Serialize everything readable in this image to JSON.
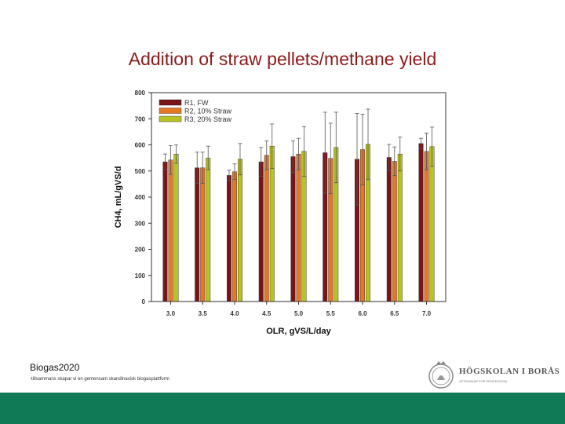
{
  "slide": {
    "title": "Addition of straw pellets/methane yield",
    "footer_brand": "Biogas2020",
    "footer_tagline": "-tillsammans skapar vi en gemensam skandinavisk biogasplattform",
    "logo_name": "HÖGSKOLAN I BORÅS",
    "logo_sub": "VETENSKAP FÖR PROFESSION",
    "bar_color": "#0f7a55"
  },
  "chart_data": {
    "type": "bar",
    "title": "",
    "xlabel": "OLR, gVS/L/day",
    "ylabel": "CH4, mL/gVS/d",
    "ylim": [
      0,
      800
    ],
    "yticks": [
      0,
      100,
      200,
      300,
      400,
      500,
      600,
      700,
      800
    ],
    "categories": [
      "3.0",
      "3.5",
      "4.0",
      "4.5",
      "5.0",
      "5.5",
      "6.0",
      "6.5",
      "7.0"
    ],
    "legend_position": "top-left",
    "grid": false,
    "series": [
      {
        "name": "R1, FW",
        "color": "#7a1416",
        "values": [
          535,
          512,
          483,
          535,
          555,
          570,
          545,
          552,
          605
        ],
        "errors": [
          30,
          60,
          20,
          55,
          60,
          155,
          175,
          50,
          20
        ]
      },
      {
        "name": "R2, 10% Straw",
        "color": "#e87722",
        "values": [
          542,
          512,
          497,
          560,
          565,
          548,
          582,
          537,
          575
        ],
        "errors": [
          55,
          60,
          30,
          55,
          60,
          135,
          135,
          55,
          70
        ]
      },
      {
        "name": "R3, 20% Straw",
        "color": "#b8c224",
        "values": [
          565,
          550,
          545,
          595,
          575,
          590,
          602,
          565,
          593
        ],
        "errors": [
          35,
          45,
          60,
          85,
          95,
          135,
          135,
          65,
          75
        ]
      }
    ]
  }
}
